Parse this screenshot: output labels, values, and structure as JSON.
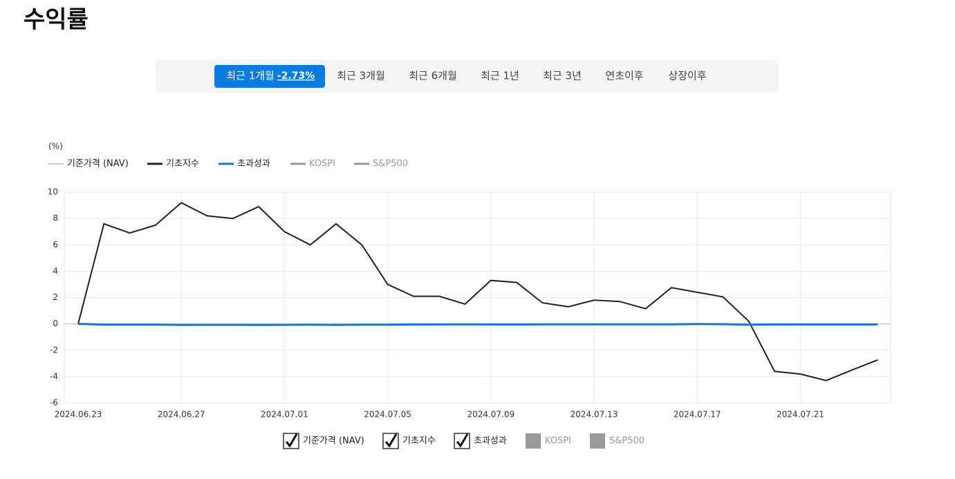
{
  "header": {
    "title": "수익률"
  },
  "tabs": [
    {
      "label": "최근 1개월",
      "value_label": "-2.73%",
      "active": true
    },
    {
      "label": "최근 3개월"
    },
    {
      "label": "최근 6개월"
    },
    {
      "label": "최근 1년"
    },
    {
      "label": "최근 3년"
    },
    {
      "label": "연초이후"
    },
    {
      "label": "상장이후"
    }
  ],
  "chart_data": {
    "type": "line",
    "y_label": "(%)",
    "categories": [
      "2024.06.23",
      null,
      null,
      null,
      "2024.06.27",
      null,
      null,
      null,
      "2024.07.01",
      null,
      null,
      null,
      "2024.07.05",
      null,
      null,
      null,
      "2024.07.09",
      null,
      null,
      null,
      "2024.07.13",
      null,
      null,
      null,
      "2024.07.17",
      null,
      null,
      null,
      "2024.07.21",
      null,
      null,
      null
    ],
    "series": [
      {
        "name": "기준가격 (NAV)",
        "color": "#999999",
        "visible": true
      },
      {
        "name": "기초지수",
        "color": "#1f1f2e",
        "visible": true,
        "values": [
          0,
          7.6,
          6.9,
          7.5,
          9.2,
          8.2,
          8.0,
          8.9,
          7.0,
          6.0,
          7.6,
          6.0,
          3.0,
          2.1,
          2.1,
          1.5,
          3.3,
          3.15,
          1.6,
          1.3,
          1.8,
          1.7,
          1.15,
          2.75,
          2.4,
          2.05,
          0.2,
          -3.6,
          -3.8,
          -4.3,
          -3.5,
          -2.73
        ]
      },
      {
        "name": "초과성과",
        "color": "#1677d2",
        "visible": true,
        "values": [
          0,
          -0.05,
          -0.05,
          -0.05,
          -0.08,
          -0.07,
          -0.07,
          -0.08,
          -0.07,
          -0.06,
          -0.08,
          -0.06,
          -0.06,
          -0.04,
          -0.04,
          -0.03,
          -0.04,
          -0.04,
          -0.03,
          -0.03,
          -0.03,
          -0.03,
          -0.03,
          -0.03,
          -0.01,
          -0.02,
          -0.06,
          -0.04,
          -0.04,
          -0.04,
          -0.04,
          -0.04
        ]
      },
      {
        "name": "KOSPI",
        "color": "#999999",
        "visible": false
      },
      {
        "name": "S&P500",
        "color": "#999999",
        "visible": false
      }
    ],
    "ylim": [
      -6,
      10
    ],
    "yticks": [
      -6,
      -4,
      -2,
      0,
      2,
      4,
      6,
      8,
      10
    ],
    "grid": true
  }
}
